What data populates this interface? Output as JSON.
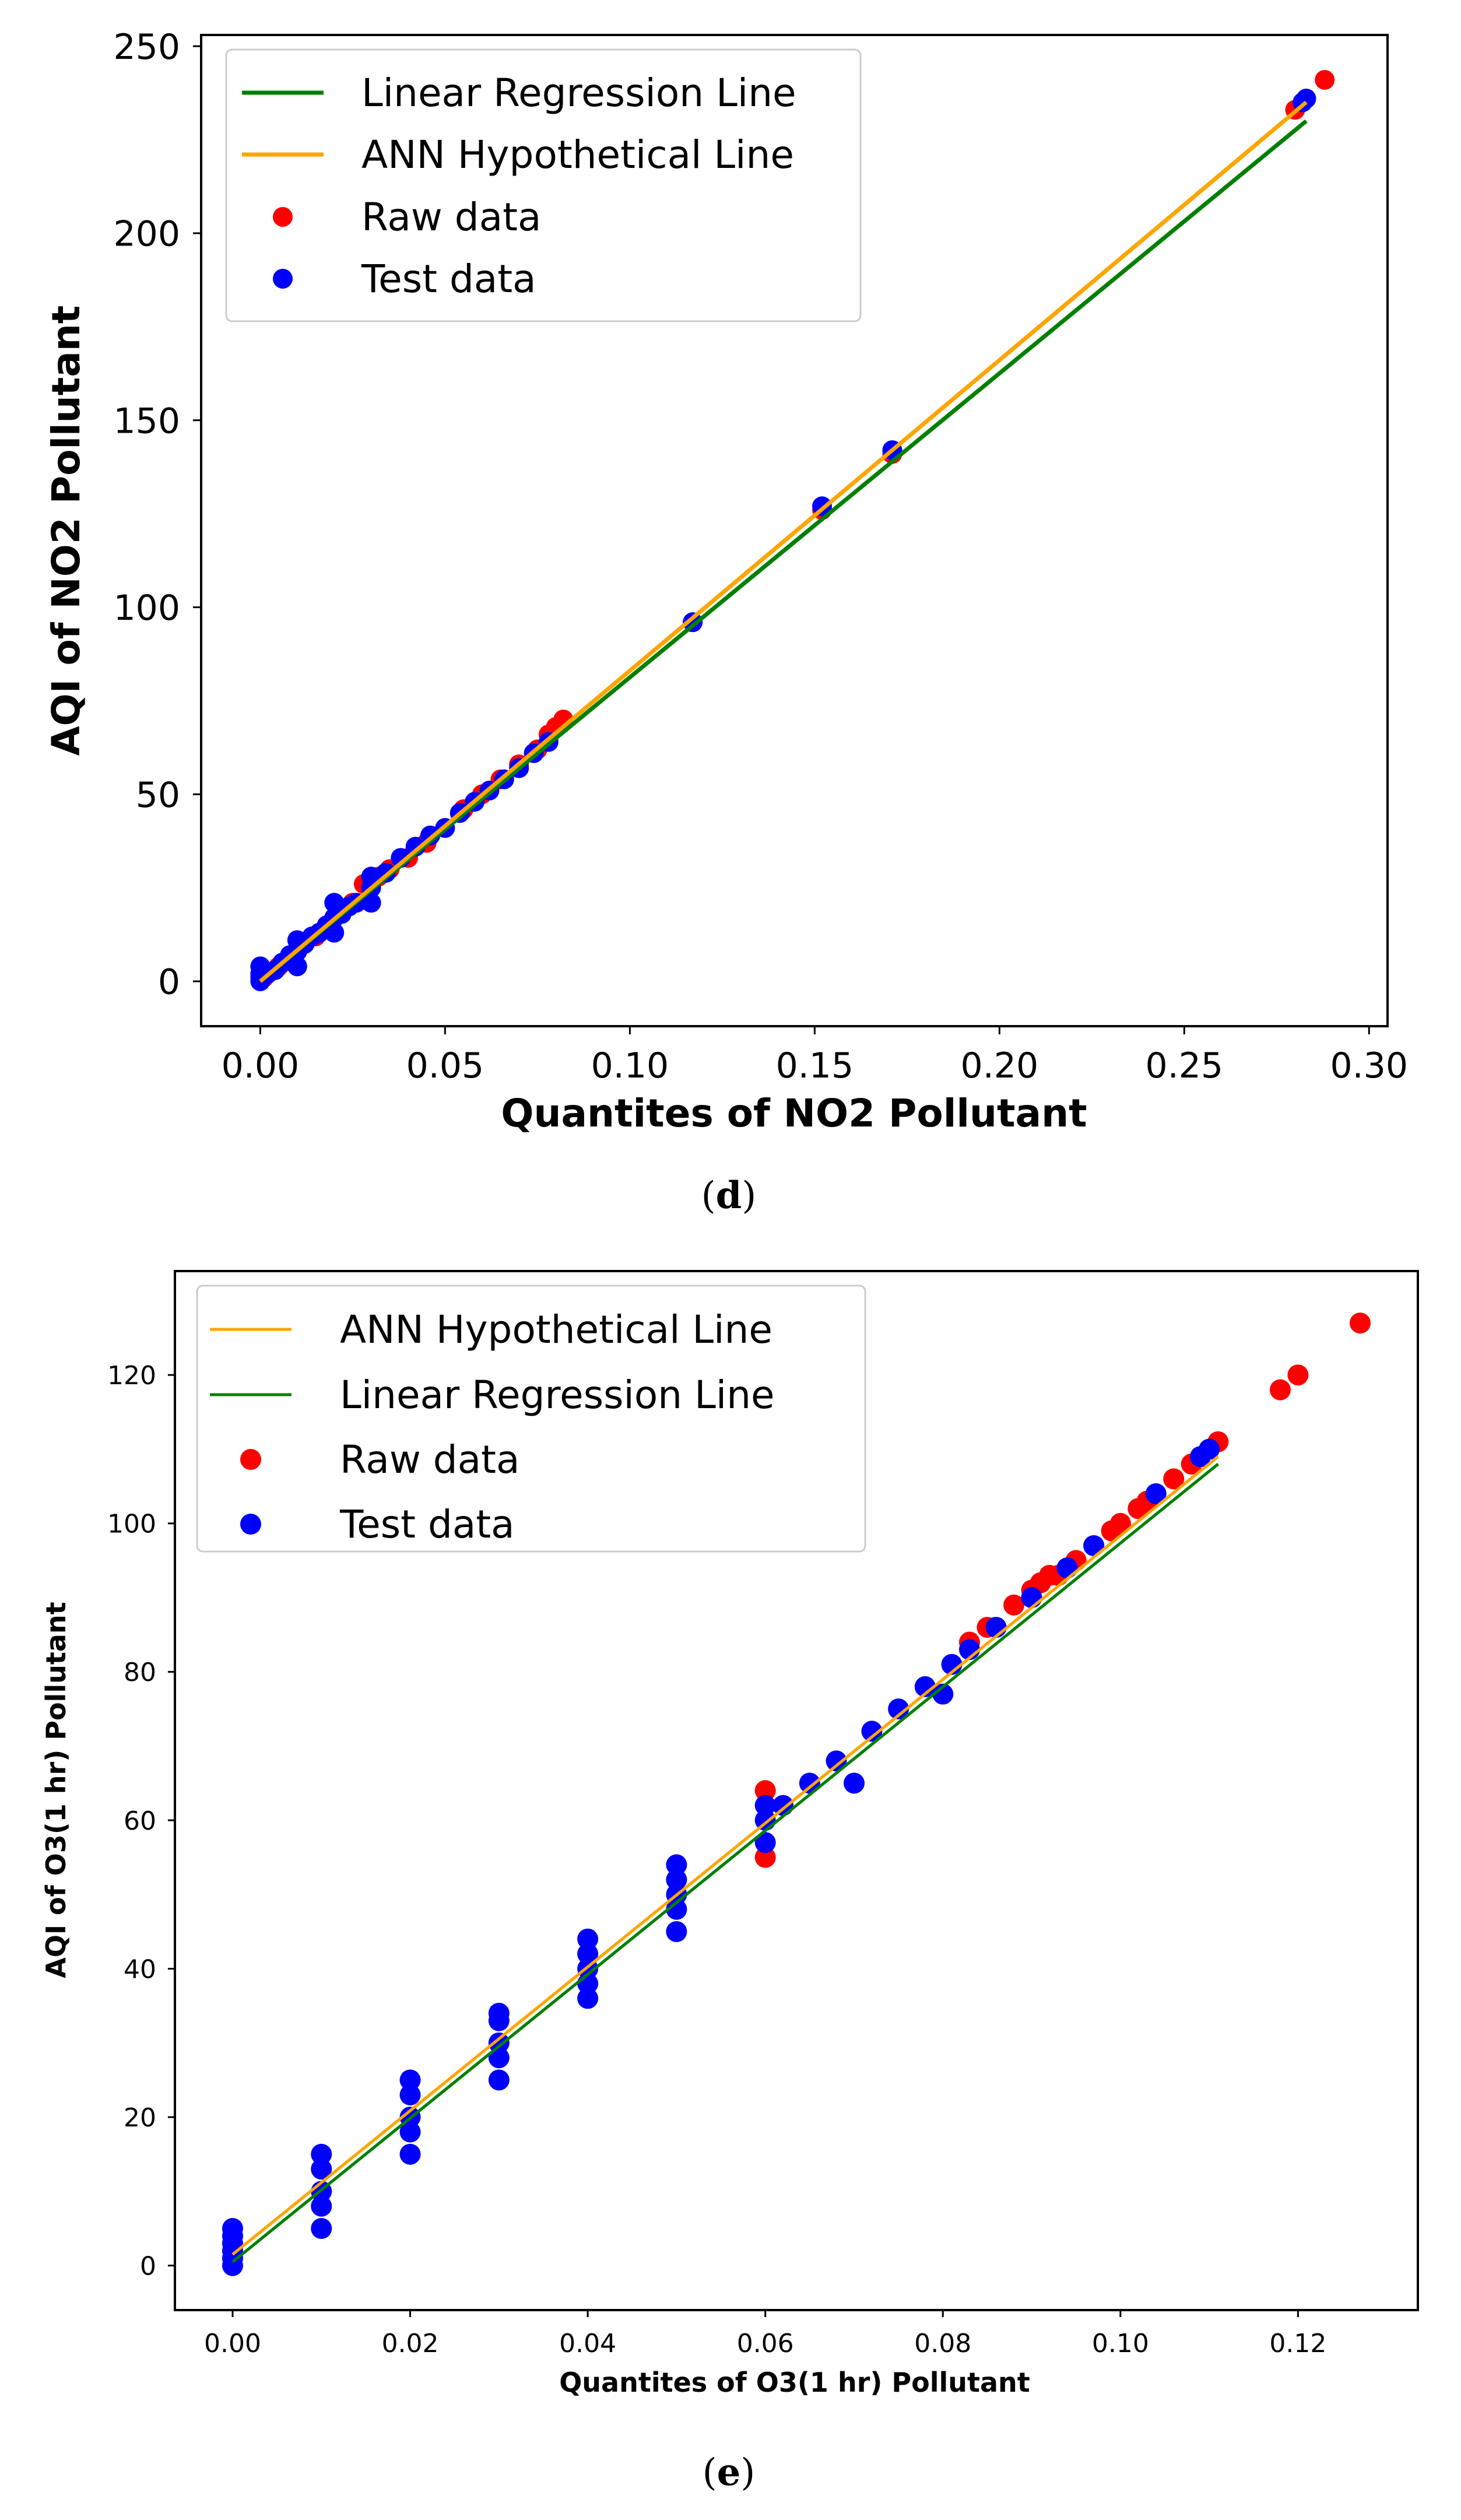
{
  "figure": {
    "captions": [
      "(d)",
      "(e)"
    ],
    "caption_letters": [
      "d",
      "e"
    ]
  },
  "colors": {
    "regression": "#008000",
    "ann": "#FFA500",
    "raw": "#FF0000",
    "test": "#0000FF",
    "axis": "#000000"
  },
  "chart_data": [
    {
      "id": "d",
      "type": "scatter",
      "title": "",
      "xlabel": "Quantites of NO2 Pollutant",
      "ylabel": "AQI of NO2 Pollutant",
      "xlim": [
        -0.016,
        0.305
      ],
      "ylim": [
        -12,
        253
      ],
      "xticks": [
        0.0,
        0.05,
        0.1,
        0.15,
        0.2,
        0.25,
        0.3
      ],
      "xtick_labels": [
        "0.00",
        "0.05",
        "0.10",
        "0.15",
        "0.20",
        "0.25",
        "0.30"
      ],
      "yticks": [
        0,
        50,
        100,
        150,
        200,
        250
      ],
      "ytick_labels": [
        "0",
        "50",
        "100",
        "150",
        "200",
        "250"
      ],
      "legend_position": "top-left",
      "legend": [
        "Linear Regression Line",
        "ANN Hypothetical Line",
        "Raw data",
        "Test data"
      ],
      "series": [
        {
          "name": "Linear Regression Line",
          "kind": "line",
          "color_key": "regression",
          "x": [
            0.0,
            0.283
          ],
          "y": [
            0.0,
            230.0
          ]
        },
        {
          "name": "ANN Hypothetical Line",
          "kind": "line",
          "color_key": "ann",
          "x": [
            0.0,
            0.283
          ],
          "y": [
            0.0,
            235.0
          ]
        },
        {
          "name": "Raw data",
          "kind": "scatter",
          "color_key": "raw",
          "x": [
            0.001,
            0.005,
            0.01,
            0.015,
            0.02,
            0.025,
            0.028,
            0.032,
            0.035,
            0.04,
            0.045,
            0.05,
            0.055,
            0.06,
            0.065,
            0.07,
            0.075,
            0.078,
            0.08,
            0.082,
            0.117,
            0.152,
            0.171,
            0.28,
            0.288
          ],
          "y": [
            1,
            4,
            8,
            12,
            17,
            21,
            26,
            28,
            30,
            33,
            37,
            41,
            46,
            50,
            54,
            58,
            62,
            66,
            68,
            70,
            96,
            126,
            141,
            233,
            241
          ]
        },
        {
          "name": "Test data",
          "kind": "scatter",
          "color_key": "test",
          "x": [
            0.0,
            0.0,
            0.0,
            0.0,
            0.002,
            0.004,
            0.006,
            0.008,
            0.01,
            0.01,
            0.01,
            0.012,
            0.014,
            0.016,
            0.018,
            0.02,
            0.02,
            0.02,
            0.022,
            0.024,
            0.026,
            0.03,
            0.03,
            0.03,
            0.034,
            0.038,
            0.042,
            0.046,
            0.05,
            0.054,
            0.058,
            0.062,
            0.066,
            0.07,
            0.074,
            0.078,
            0.117,
            0.152,
            0.171,
            0.282,
            0.283
          ],
          "y": [
            0,
            1,
            2,
            4,
            2,
            3,
            5,
            7,
            4,
            8,
            11,
            10,
            12,
            13,
            15,
            13,
            17,
            21,
            18,
            20,
            21,
            21,
            25,
            28,
            29,
            33,
            36,
            39,
            41,
            45,
            48,
            51,
            54,
            57,
            61,
            64,
            96,
            127,
            142,
            235,
            236
          ]
        }
      ]
    },
    {
      "id": "e",
      "type": "scatter",
      "title": "",
      "xlabel": "Quantites of O3(1 hr) Pollutant",
      "ylabel": "AQI of O3(1 hr) Pollutant",
      "xlim": [
        -0.0065,
        0.1335
      ],
      "ylim": [
        -6,
        134
      ],
      "xticks": [
        0.0,
        0.02,
        0.04,
        0.06,
        0.08,
        0.1,
        0.12
      ],
      "xtick_labels": [
        "0.00",
        "0.02",
        "0.04",
        "0.06",
        "0.08",
        "0.10",
        "0.12"
      ],
      "yticks": [
        0,
        20,
        40,
        60,
        80,
        100,
        120
      ],
      "ytick_labels": [
        "0",
        "20",
        "40",
        "60",
        "80",
        "100",
        "120"
      ],
      "legend_position": "top-left",
      "legend": [
        "ANN Hypothetical Line",
        "Linear Regression Line",
        "Raw data",
        "Test data"
      ],
      "series": [
        {
          "name": "ANN Hypothetical Line",
          "kind": "line",
          "color_key": "ann",
          "x": [
            0.0,
            0.111
          ],
          "y": [
            1.5,
            109.0
          ]
        },
        {
          "name": "Linear Regression Line",
          "kind": "line",
          "color_key": "regression",
          "x": [
            0.0,
            0.111
          ],
          "y": [
            0.5,
            108.0
          ]
        },
        {
          "name": "Raw data",
          "kind": "scatter",
          "color_key": "raw",
          "x": [
            0.06,
            0.06,
            0.083,
            0.085,
            0.088,
            0.09,
            0.091,
            0.092,
            0.093,
            0.095,
            0.097,
            0.099,
            0.1,
            0.102,
            0.103,
            0.106,
            0.108,
            0.111,
            0.118,
            0.12,
            0.127
          ],
          "y": [
            64,
            55,
            84,
            86,
            89,
            91,
            92,
            93,
            93,
            95,
            97,
            99,
            100,
            102,
            103,
            106,
            108,
            111,
            118,
            120,
            127
          ]
        },
        {
          "name": "Test data",
          "kind": "scatter",
          "color_key": "test",
          "x": [
            0.0,
            0.0,
            0.0,
            0.0,
            0.0,
            0.0,
            0.01,
            0.01,
            0.01,
            0.01,
            0.01,
            0.02,
            0.02,
            0.02,
            0.02,
            0.02,
            0.03,
            0.03,
            0.03,
            0.03,
            0.03,
            0.04,
            0.04,
            0.04,
            0.04,
            0.04,
            0.05,
            0.05,
            0.05,
            0.05,
            0.05,
            0.06,
            0.06,
            0.06,
            0.062,
            0.065,
            0.068,
            0.07,
            0.072,
            0.075,
            0.078,
            0.08,
            0.081,
            0.083,
            0.086,
            0.09,
            0.094,
            0.097,
            0.104,
            0.109,
            0.11
          ],
          "y": [
            0,
            1,
            2,
            3,
            4,
            5,
            5,
            8,
            10,
            13,
            15,
            15,
            18,
            20,
            23,
            25,
            25,
            28,
            30,
            33,
            34,
            36,
            38,
            40,
            42,
            44,
            45,
            48,
            50,
            52,
            54,
            57,
            60,
            62,
            62,
            65,
            68,
            65,
            72,
            75,
            78,
            77,
            81,
            83,
            86,
            90,
            94,
            97,
            104,
            109,
            110
          ]
        }
      ]
    }
  ]
}
